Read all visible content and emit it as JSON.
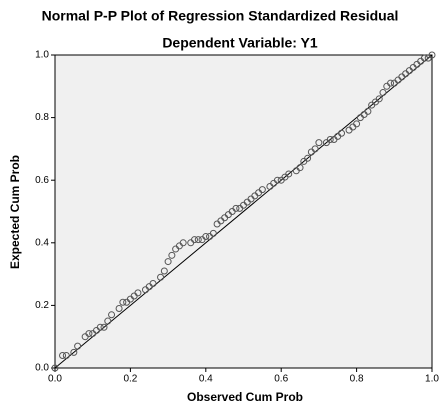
{
  "chart_data": {
    "type": "scatter",
    "title": "Normal P-P Plot of Regression Standardized Residual",
    "subtitle": "Dependent Variable: Y1",
    "x_label": "Observed Cum Prob",
    "y_label": "Expected Cum Prob",
    "xlim": [
      0,
      1
    ],
    "ylim": [
      0,
      1
    ],
    "xticks": [
      {
        "value": 0,
        "label": "0.0"
      },
      0.2,
      0.4,
      0.6,
      0.8,
      {
        "value": 1,
        "label": "1.0"
      }
    ],
    "yticks": [
      {
        "value": 0,
        "label": "0.0"
      },
      0.2,
      0.4,
      0.6,
      0.8,
      {
        "value": 1,
        "label": "1.0"
      }
    ],
    "reference_line": true,
    "color": "#555555",
    "x": [
      0.0,
      0.02,
      0.03,
      0.05,
      0.06,
      0.08,
      0.09,
      0.1,
      0.11,
      0.12,
      0.13,
      0.14,
      0.15,
      0.17,
      0.18,
      0.19,
      0.2,
      0.21,
      0.22,
      0.24,
      0.25,
      0.26,
      0.28,
      0.29,
      0.3,
      0.31,
      0.32,
      0.33,
      0.34,
      0.36,
      0.37,
      0.38,
      0.39,
      0.4,
      0.41,
      0.42,
      0.43,
      0.44,
      0.45,
      0.46,
      0.47,
      0.48,
      0.49,
      0.5,
      0.51,
      0.52,
      0.53,
      0.54,
      0.55,
      0.57,
      0.58,
      0.59,
      0.6,
      0.61,
      0.62,
      0.64,
      0.65,
      0.66,
      0.67,
      0.68,
      0.69,
      0.7,
      0.72,
      0.73,
      0.74,
      0.75,
      0.76,
      0.78,
      0.79,
      0.8,
      0.81,
      0.82,
      0.83,
      0.84,
      0.85,
      0.86,
      0.87,
      0.88,
      0.89,
      0.9,
      0.91,
      0.92,
      0.93,
      0.94,
      0.95,
      0.96,
      0.97,
      0.98,
      0.99,
      1.0
    ],
    "y": [
      0.0,
      0.04,
      0.04,
      0.05,
      0.07,
      0.1,
      0.11,
      0.11,
      0.12,
      0.13,
      0.13,
      0.15,
      0.17,
      0.19,
      0.21,
      0.21,
      0.22,
      0.23,
      0.24,
      0.25,
      0.26,
      0.27,
      0.29,
      0.31,
      0.34,
      0.36,
      0.38,
      0.39,
      0.4,
      0.4,
      0.41,
      0.41,
      0.41,
      0.42,
      0.42,
      0.43,
      0.46,
      0.47,
      0.48,
      0.49,
      0.5,
      0.51,
      0.51,
      0.52,
      0.53,
      0.54,
      0.55,
      0.56,
      0.57,
      0.58,
      0.59,
      0.6,
      0.6,
      0.61,
      0.62,
      0.63,
      0.64,
      0.66,
      0.67,
      0.69,
      0.7,
      0.72,
      0.72,
      0.73,
      0.73,
      0.74,
      0.75,
      0.76,
      0.77,
      0.78,
      0.8,
      0.81,
      0.82,
      0.84,
      0.85,
      0.86,
      0.88,
      0.9,
      0.91,
      0.91,
      0.92,
      0.93,
      0.94,
      0.95,
      0.96,
      0.97,
      0.98,
      0.99,
      0.99,
      1.0
    ]
  }
}
